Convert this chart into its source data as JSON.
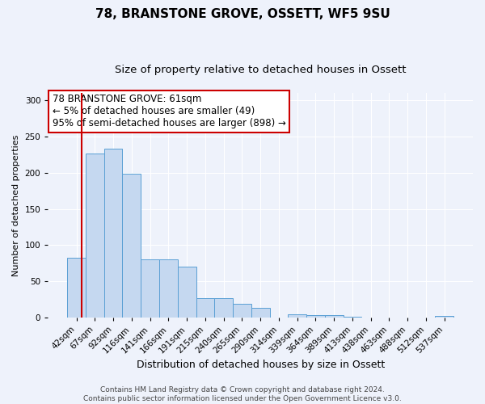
{
  "title": "78, BRANSTONE GROVE, OSSETT, WF5 9SU",
  "subtitle": "Size of property relative to detached houses in Ossett",
  "xlabel": "Distribution of detached houses by size in Ossett",
  "ylabel": "Number of detached properties",
  "bin_labels": [
    "42sqm",
    "67sqm",
    "92sqm",
    "116sqm",
    "141sqm",
    "166sqm",
    "191sqm",
    "215sqm",
    "240sqm",
    "265sqm",
    "290sqm",
    "314sqm",
    "339sqm",
    "364sqm",
    "389sqm",
    "413sqm",
    "438sqm",
    "463sqm",
    "488sqm",
    "512sqm",
    "537sqm"
  ],
  "bar_values": [
    83,
    226,
    233,
    199,
    80,
    80,
    70,
    27,
    27,
    19,
    14,
    0,
    5,
    3,
    3,
    1,
    0,
    0,
    0,
    0,
    2
  ],
  "bar_color": "#c5d8f0",
  "bar_edge_color": "#5a9fd4",
  "ylim": [
    0,
    310
  ],
  "yticks": [
    0,
    50,
    100,
    150,
    200,
    250,
    300
  ],
  "annotation_line1": "78 BRANSTONE GROVE: 61sqm",
  "annotation_line2": "← 5% of detached houses are smaller (49)",
  "annotation_line3": "95% of semi-detached houses are larger (898) →",
  "red_line_color": "#cc0000",
  "footer_line1": "Contains HM Land Registry data © Crown copyright and database right 2024.",
  "footer_line2": "Contains public sector information licensed under the Open Government Licence v3.0.",
  "background_color": "#eef2fb",
  "grid_color": "#ffffff",
  "title_fontsize": 11,
  "subtitle_fontsize": 9.5,
  "xlabel_fontsize": 9,
  "ylabel_fontsize": 8,
  "tick_fontsize": 7.5,
  "annotation_fontsize": 8.5,
  "footer_fontsize": 6.5
}
